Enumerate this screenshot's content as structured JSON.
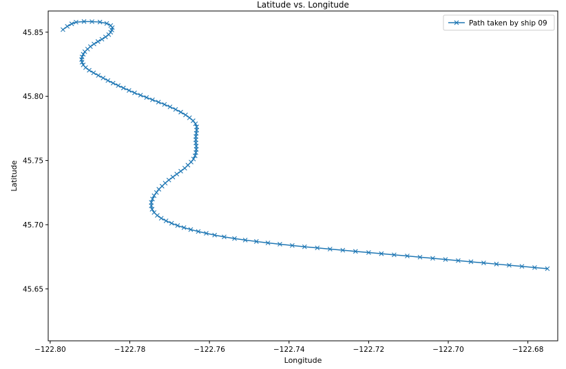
{
  "chart_data": {
    "type": "line",
    "title": "Latitude vs. Longitude",
    "xlabel": "Longitude",
    "ylabel": "Latitude",
    "xlim": [
      -122.8005,
      -122.6725
    ],
    "ylim": [
      45.6095,
      45.8665
    ],
    "xticks": [
      -122.8,
      -122.78,
      -122.76,
      -122.74,
      -122.72,
      -122.7,
      -122.68
    ],
    "xtick_labels": [
      "−122.80",
      "−122.78",
      "−122.76",
      "−122.74",
      "−122.72",
      "−122.70",
      "−122.68"
    ],
    "yticks": [
      45.65,
      45.7,
      45.75,
      45.8,
      45.85
    ],
    "ytick_labels": [
      "45.65",
      "45.70",
      "45.75",
      "45.80",
      "45.85"
    ],
    "grid": false,
    "legend_position": "top-right",
    "marker": "x",
    "color": "#1f77b4",
    "series": [
      {
        "name": "Path taken by ship 09",
        "x": [
          -122.7968,
          -122.7957,
          -122.7946,
          -122.7935,
          -122.7915,
          -122.7895,
          -122.7875,
          -122.7858,
          -122.7848,
          -122.7844,
          -122.7845,
          -122.7848,
          -122.7853,
          -122.7861,
          -122.787,
          -122.788,
          -122.789,
          -122.7899,
          -122.7906,
          -122.7913,
          -122.7917,
          -122.792,
          -122.7921,
          -122.792,
          -122.7917,
          -122.7911,
          -122.7902,
          -122.7891,
          -122.7879,
          -122.7867,
          -122.7855,
          -122.7842,
          -122.7829,
          -122.7816,
          -122.7802,
          -122.7788,
          -122.7773,
          -122.7758,
          -122.7743,
          -122.7728,
          -122.7713,
          -122.7699,
          -122.7685,
          -122.7672,
          -122.766,
          -122.765,
          -122.7641,
          -122.7635,
          -122.7632,
          -122.7632,
          -122.7633,
          -122.7634,
          -122.7634,
          -122.7634,
          -122.7633,
          -122.7633,
          -122.7634,
          -122.7636,
          -122.764,
          -122.7646,
          -122.7654,
          -122.7662,
          -122.7672,
          -122.7682,
          -122.7692,
          -122.7702,
          -122.7711,
          -122.7719,
          -122.7727,
          -122.7733,
          -122.7739,
          -122.7743,
          -122.7746,
          -122.7746,
          -122.7744,
          -122.7739,
          -122.7731,
          -122.7721,
          -122.7709,
          -122.7695,
          -122.768,
          -122.7664,
          -122.7647,
          -122.7628,
          -122.7608,
          -122.7587,
          -122.7563,
          -122.7537,
          -122.751,
          -122.7482,
          -122.7453,
          -122.7423,
          -122.7392,
          -122.7361,
          -122.7329,
          -122.7297,
          -122.7265,
          -122.7233,
          -122.72,
          -122.7168,
          -122.7136,
          -122.7103,
          -122.7071,
          -122.7039,
          -122.7007,
          -122.6975,
          -122.6943,
          -122.6911,
          -122.6879,
          -122.6847,
          -122.6815,
          -122.6783,
          -122.6751
        ],
        "y": [
          45.852,
          45.8545,
          45.8565,
          45.8578,
          45.8583,
          45.8582,
          45.8579,
          45.8568,
          45.8552,
          45.8535,
          45.8517,
          45.8499,
          45.8481,
          45.8463,
          45.8445,
          45.8427,
          45.8408,
          45.8388,
          45.8368,
          45.8348,
          45.8328,
          45.8307,
          45.8287,
          45.8266,
          45.8245,
          45.8224,
          45.8203,
          45.8183,
          45.8163,
          45.8143,
          45.8123,
          45.8103,
          45.8084,
          45.8065,
          45.8046,
          45.8027,
          45.8009,
          45.7991,
          45.7973,
          45.7955,
          45.7937,
          45.7918,
          45.7898,
          45.7877,
          45.7855,
          45.7833,
          45.781,
          45.7786,
          45.7762,
          45.7737,
          45.7712,
          45.7687,
          45.7662,
          45.7637,
          45.7612,
          45.7587,
          45.7562,
          45.7537,
          45.7512,
          45.7488,
          45.7464,
          45.744,
          45.7417,
          45.7394,
          45.7371,
          45.7348,
          45.7324,
          45.73,
          45.7276,
          45.7251,
          45.7226,
          45.72,
          45.7174,
          45.7147,
          45.712,
          45.7095,
          45.7072,
          45.705,
          45.703,
          45.7011,
          45.6993,
          45.6977,
          45.6962,
          45.6947,
          45.6933,
          45.6919,
          45.6905,
          45.6892,
          45.688,
          45.6869,
          45.6858,
          45.6848,
          45.6838,
          45.6828,
          45.6819,
          45.681,
          45.6801,
          45.6792,
          45.6783,
          45.6774,
          45.6765,
          45.6756,
          45.6747,
          45.6738,
          45.6729,
          45.672,
          45.6711,
          45.6702,
          45.6693,
          45.6684,
          45.6675,
          45.6666,
          45.6657
        ]
      }
    ]
  }
}
